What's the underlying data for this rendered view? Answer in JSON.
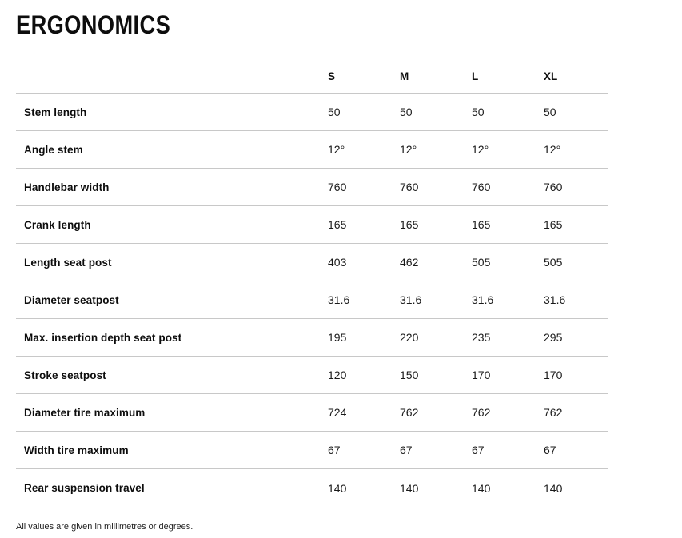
{
  "page": {
    "title": "ERGONOMICS",
    "footnote": "All values are given in millimetres or degrees."
  },
  "colors": {
    "background": "#ffffff",
    "text": "#0d0d0d",
    "value_text": "#1a1a1a",
    "divider": "#c8c8c8"
  },
  "table": {
    "columns": [
      "S",
      "M",
      "L",
      "XL"
    ],
    "rows": [
      {
        "label": "Stem length",
        "values": [
          "50",
          "50",
          "50",
          "50"
        ]
      },
      {
        "label": "Angle stem",
        "values": [
          "12°",
          "12°",
          "12°",
          "12°"
        ]
      },
      {
        "label": "Handlebar width",
        "values": [
          "760",
          "760",
          "760",
          "760"
        ]
      },
      {
        "label": "Crank length",
        "values": [
          "165",
          "165",
          "165",
          "165"
        ]
      },
      {
        "label": "Length seat post",
        "values": [
          "403",
          "462",
          "505",
          "505"
        ]
      },
      {
        "label": "Diameter seatpost",
        "values": [
          "31.6",
          "31.6",
          "31.6",
          "31.6"
        ]
      },
      {
        "label": "Max. insertion depth seat post",
        "values": [
          "195",
          "220",
          "235",
          "295"
        ]
      },
      {
        "label": "Stroke seatpost",
        "values": [
          "120",
          "150",
          "170",
          "170"
        ]
      },
      {
        "label": "Diameter tire maximum",
        "values": [
          "724",
          "762",
          "762",
          "762"
        ]
      },
      {
        "label": "Width tire maximum",
        "values": [
          "67",
          "67",
          "67",
          "67"
        ]
      },
      {
        "label": "Rear suspension travel",
        "values": [
          "140",
          "140",
          "140",
          "140"
        ]
      }
    ]
  }
}
